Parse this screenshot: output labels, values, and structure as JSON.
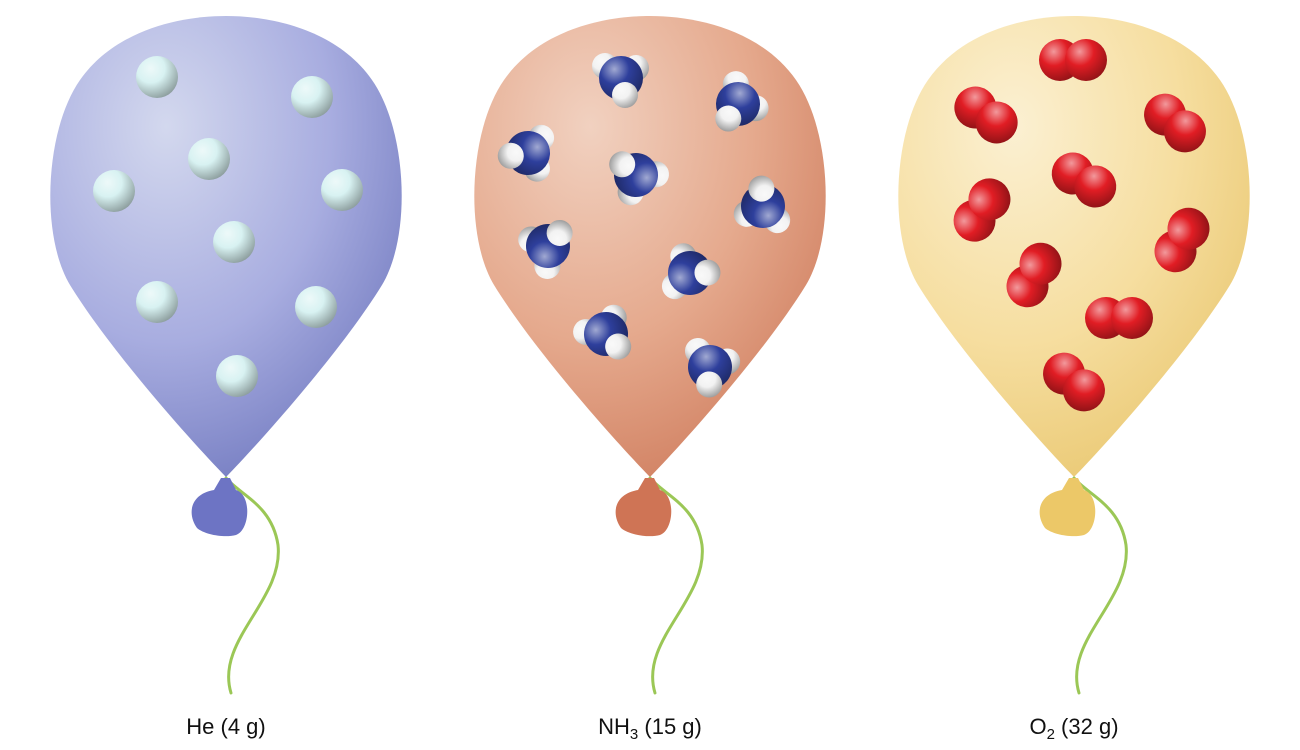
{
  "balloons": [
    {
      "id": "he",
      "gas": "helium",
      "label_base": "He",
      "label_sub": "",
      "label_rest": "(4 g)",
      "molecule_count": 10,
      "colors": {
        "light": "#d3d8ee",
        "mid": "#a8ade0",
        "dark": "#7179bf",
        "knot": "#6d74c4"
      }
    },
    {
      "id": "nh3",
      "gas": "ammonia",
      "label_base": "NH",
      "label_sub": "3",
      "label_rest": "(15 g)",
      "molecule_count": 10,
      "colors": {
        "light": "#f1d1c0",
        "mid": "#e5a98d",
        "dark": "#cf7d5e",
        "knot": "#cf7455"
      }
    },
    {
      "id": "o2",
      "gas": "oxygen",
      "label_base": "O",
      "label_sub": "2",
      "label_rest": "(32 g)",
      "molecule_count": 10,
      "colors": {
        "light": "#fbf0d2",
        "mid": "#f6dea0",
        "dark": "#e9c770",
        "knot": "#ecc868"
      }
    }
  ],
  "atom_colors": {
    "helium": "#d8f2f2",
    "nitrogen": "#2e3f9c",
    "hydrogen": "#ffffff",
    "oxygen": "#e11d24"
  },
  "string_color": "#9bc756"
}
